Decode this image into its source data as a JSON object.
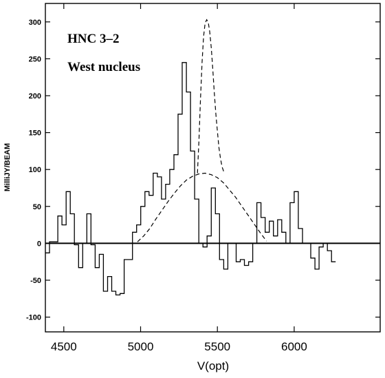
{
  "chart_data": {
    "type": "line",
    "xlabel": "V(opt)",
    "ylabel": "MilliJY/BEAM",
    "xlim": [
      4380,
      6560
    ],
    "ylim": [
      -120,
      325
    ],
    "xticks": [
      4500,
      5000,
      5500,
      6000
    ],
    "xtick_labels": [
      "4500",
      "5000",
      "5500",
      "6000"
    ],
    "yticks": [
      -100,
      -50,
      0,
      50,
      100,
      150,
      200,
      250,
      300
    ],
    "ytick_labels": [
      "-100",
      "-50",
      "0",
      "50",
      "100",
      "150",
      "200",
      "250",
      "300"
    ],
    "grid": false,
    "annotations": [
      "HNC 3–2",
      "West nucleus"
    ],
    "series": [
      {
        "style": "histogram-solid",
        "bin_width": 27,
        "x_start": 4380,
        "values": [
          -13,
          2,
          2,
          37,
          25,
          70,
          40,
          -2,
          -33,
          0,
          40,
          -2,
          -33,
          -15,
          -65,
          -45,
          -65,
          -70,
          -68,
          -22,
          -22,
          15,
          25,
          50,
          70,
          65,
          95,
          90,
          60,
          80,
          100,
          120,
          175,
          245,
          205,
          125,
          60,
          0,
          -5,
          10,
          75,
          40,
          -22,
          -35,
          0,
          0,
          -25,
          -22,
          -30,
          -25,
          0,
          55,
          35,
          15,
          30,
          10,
          32,
          15,
          0,
          55,
          70,
          20,
          0,
          0,
          -20,
          -35,
          -5,
          0,
          -10,
          -25
        ]
      },
      {
        "style": "dashed",
        "x": [
          4980,
          5020,
          5060,
          5100,
          5140,
          5180,
          5220,
          5260,
          5300,
          5340,
          5380,
          5420,
          5460,
          5500,
          5540,
          5580,
          5620,
          5660,
          5700,
          5740,
          5780,
          5820
        ],
        "values": [
          2,
          10,
          20,
          33,
          45,
          57,
          68,
          78,
          86,
          91,
          94,
          95,
          93,
          89,
          82,
          72,
          62,
          50,
          38,
          26,
          14,
          3
        ]
      },
      {
        "style": "dashed",
        "x": [
          5370,
          5380,
          5390,
          5400,
          5410,
          5420,
          5430,
          5440,
          5450,
          5460,
          5470,
          5480,
          5490,
          5500,
          5510,
          5520,
          5530,
          5540,
          5550
        ],
        "values": [
          95,
          140,
          195,
          245,
          280,
          298,
          303,
          300,
          287,
          265,
          236,
          204,
          175,
          152,
          130,
          115,
          104,
          98,
          95
        ]
      }
    ]
  }
}
